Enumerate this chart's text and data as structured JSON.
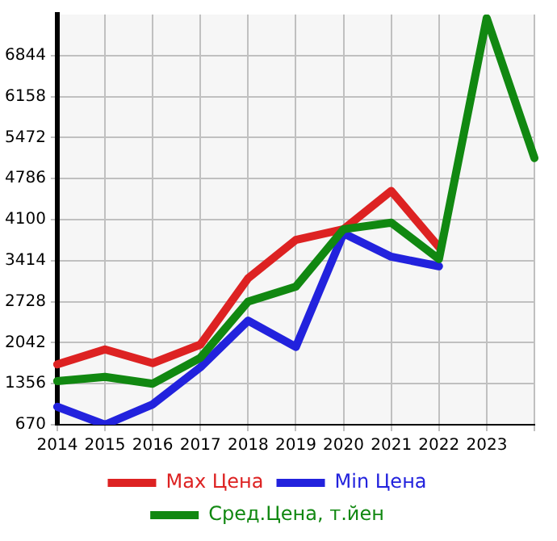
{
  "chart_data": {
    "type": "line",
    "categories": [
      "2014",
      "2015",
      "2016",
      "2017",
      "2018",
      "2019",
      "2020",
      "2021",
      "2022",
      "2023",
      null
    ],
    "series": [
      {
        "name": "Max Цена",
        "color": "#dd2222",
        "values": [
          1680,
          1930,
          1700,
          2010,
          3120,
          3760,
          3940,
          4580,
          3640,
          null,
          null
        ]
      },
      {
        "name": "Min Цена",
        "color": "#2222dd",
        "values": [
          970,
          670,
          1010,
          1630,
          2410,
          1970,
          3870,
          3480,
          3320,
          null,
          null
        ]
      },
      {
        "name": "Сред.Цена, т.йен",
        "color": "#118811",
        "values": [
          1400,
          1470,
          1356,
          1790,
          2728,
          2980,
          3940,
          4050,
          3440,
          7470,
          5130
        ]
      }
    ],
    "ylim": [
      670,
      7530
    ],
    "yticks": [
      670,
      1356,
      2042,
      2728,
      3414,
      4100,
      4786,
      5472,
      6158,
      6844
    ],
    "grid": true,
    "legend": "bottom",
    "marker": "none",
    "line_style": "solid"
  }
}
